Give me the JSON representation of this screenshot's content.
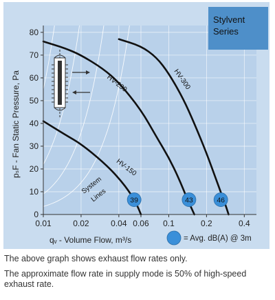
{
  "series_box": {
    "line1": "Stylvent",
    "line2": "Series"
  },
  "chart_data": {
    "type": "line",
    "xlabel": "qᵥ - Volume Flow, m³/s",
    "ylabel": "pₛF - Fan Static Pressure, Pa",
    "x_scale": "log",
    "xlim": [
      0.01,
      0.5
    ],
    "ylim": [
      0,
      83
    ],
    "x_ticks": [
      0.01,
      0.02,
      0.04,
      0.06,
      0.1,
      0.2,
      0.4
    ],
    "x_tick_labels": [
      "0.01",
      "0.02",
      "0.04",
      "0.06",
      "0.1",
      "0.2",
      "0.4"
    ],
    "y_ticks": [
      0,
      10,
      20,
      30,
      40,
      50,
      60,
      70,
      80
    ],
    "y_tick_labels": [
      "0",
      "10",
      "20",
      "30",
      "40",
      "50",
      "60",
      "70",
      "80"
    ],
    "grid": true,
    "series": [
      {
        "name": "HV-150",
        "label_at": [
          0.038,
          23
        ],
        "x": [
          0.01,
          0.015,
          0.02,
          0.03,
          0.04,
          0.05,
          0.056,
          0.06
        ],
        "y": [
          41,
          35,
          31,
          23,
          16,
          9,
          4,
          0
        ]
      },
      {
        "name": "HV-230",
        "label_at": [
          0.032,
          60
        ],
        "x": [
          0.01,
          0.015,
          0.02,
          0.03,
          0.04,
          0.06,
          0.08,
          0.1,
          0.12,
          0.14,
          0.16
        ],
        "y": [
          76,
          73,
          70,
          64,
          58,
          46,
          34,
          25,
          16,
          7,
          0
        ]
      },
      {
        "name": "HV-300",
        "label_at": [
          0.11,
          63
        ],
        "x": [
          0.04,
          0.06,
          0.08,
          0.1,
          0.13,
          0.16,
          0.2,
          0.24,
          0.28,
          0.3
        ],
        "y": [
          77,
          74,
          69,
          62,
          51,
          40,
          27,
          15,
          5,
          0
        ]
      }
    ],
    "system_lines_label": {
      "line1": "System",
      "line2": "Lines"
    },
    "sound_markers": [
      {
        "x": 0.053,
        "y": 6.5,
        "value": "39"
      },
      {
        "x": 0.145,
        "y": 6.5,
        "value": "43"
      },
      {
        "x": 0.26,
        "y": 6.5,
        "value": "46"
      }
    ],
    "legend": {
      "marker_label": "= Avg. dB(A) @ 3m",
      "placement": "bottom-right"
    }
  },
  "notes": [
    "The above graph shows exhaust flow rates only.",
    "The approximate flow rate in supply mode is 50% of high-speed exhaust rate."
  ]
}
